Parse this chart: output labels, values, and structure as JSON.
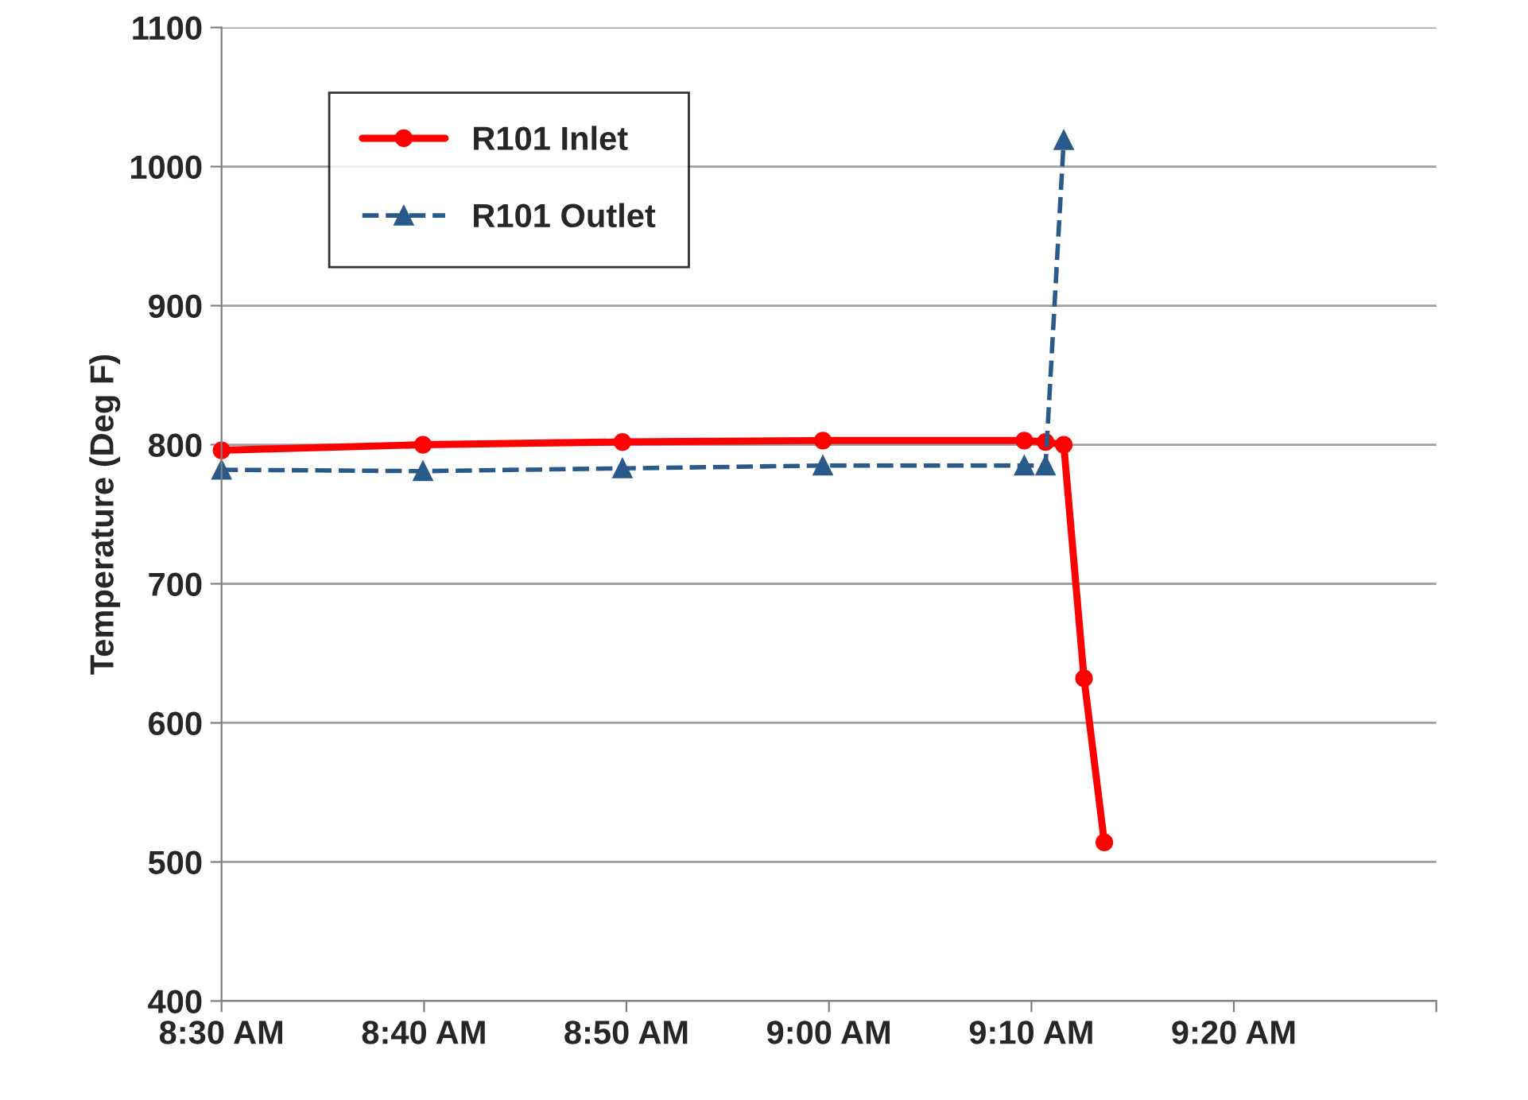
{
  "chart_data": {
    "type": "line",
    "ylabel": "Temperature (Deg F)",
    "xlim": [
      8.5,
      9.5
    ],
    "xticks": [
      {
        "value": 8.5,
        "label": "8:30 AM"
      },
      {
        "value": 8.6667,
        "label": "8:40 AM"
      },
      {
        "value": 8.8333,
        "label": "8:50 AM"
      },
      {
        "value": 9.0,
        "label": "9:00 AM"
      },
      {
        "value": 9.1667,
        "label": "9:10 AM"
      },
      {
        "value": 9.3333,
        "label": "9:20 AM"
      },
      {
        "value": 9.5,
        "label": null
      }
    ],
    "ylim": [
      400,
      1100
    ],
    "yticks": [
      400,
      500,
      600,
      700,
      800,
      900,
      1000,
      1100
    ],
    "grid": "y",
    "legend": "top left",
    "series": [
      {
        "name": "R101 Inlet",
        "color": "#ff0000",
        "marker": "circle",
        "line_style": "solid",
        "x": [
          8.5,
          8.6658,
          8.83,
          8.995,
          9.1608,
          9.1783,
          9.1933,
          9.21,
          9.2267
        ],
        "values": [
          796,
          800,
          802,
          803,
          803,
          802,
          800,
          632,
          514
        ]
      },
      {
        "name": "R101 Outlet",
        "color": "#2a5a8a",
        "marker": "triangle",
        "line_style": "dashed",
        "x": [
          8.5,
          8.6658,
          8.83,
          8.995,
          9.1608,
          9.1783,
          9.1933
        ],
        "values": [
          782,
          781,
          783,
          785,
          785,
          785,
          1019
        ]
      }
    ]
  }
}
